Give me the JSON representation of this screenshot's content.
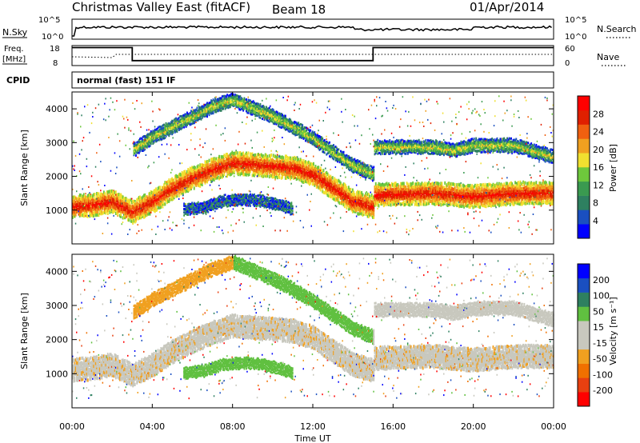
{
  "header": {
    "site": "Christmas Valley East (fitACF)",
    "beam": "Beam 18",
    "date": "01/Apr/2014"
  },
  "nsky_panel": {
    "left_label": "N.Sky",
    "left_ticks": [
      "10^5",
      "10^0"
    ],
    "right_ticks": [
      "10^5",
      "10^0"
    ],
    "right_label": "N.Search"
  },
  "freq_panel": {
    "left_label_1": "Freq.",
    "left_label_2": "[MHz]",
    "left_ticks": [
      "18",
      "8"
    ],
    "right_ticks": [
      "60",
      "0"
    ],
    "right_label": "Nave",
    "freq_steps": [
      {
        "t": 0,
        "v": 17
      },
      {
        "t": 3,
        "v": 17
      },
      {
        "t": 3,
        "v": 10.5
      },
      {
        "t": 15,
        "v": 10.5
      },
      {
        "t": 15,
        "v": 17
      },
      {
        "t": 24,
        "v": 17
      }
    ]
  },
  "cpid_panel": {
    "label": "CPID",
    "mode": "normal (fast) 151 IF"
  },
  "colors": {
    "power_scale": [
      "#0000ff",
      "#1a4fc0",
      "#2e8060",
      "#3a9a50",
      "#6ec83c",
      "#f0e030",
      "#f0a020",
      "#f06010",
      "#e02000",
      "#ff0000"
    ],
    "velocity_scale": [
      "#ff0000",
      "#e84010",
      "#f07000",
      "#f0a020",
      "#c8c8be",
      "#c8c8be",
      "#60c040",
      "#2e8060",
      "#1a4fc0",
      "#0000ff"
    ]
  },
  "chart_data": [
    {
      "type": "heatmap",
      "panel": "power",
      "ylabel": "Slant Range [km]",
      "yticks": [
        "1000",
        "2000",
        "3000",
        "4000"
      ],
      "ylim": [
        0,
        4500
      ],
      "xlim": [
        0,
        24
      ],
      "colorbar_label": "Power [dB]",
      "colorbar_ticks": [
        "4",
        "8",
        "12",
        "16",
        "20",
        "24",
        "28"
      ],
      "bands": [
        {
          "name": "near",
          "points": [
            [
              0,
              1150
            ],
            [
              1,
              1200
            ],
            [
              2,
              1300
            ],
            [
              3,
              1000
            ],
            [
              4,
              1300
            ],
            [
              5,
              1700
            ],
            [
              6,
              2000
            ],
            [
              7,
              2250
            ],
            [
              8,
              2450
            ],
            [
              9,
              2400
            ],
            [
              10,
              2350
            ],
            [
              11,
              2300
            ],
            [
              12,
              2100
            ],
            [
              13,
              1700
            ],
            [
              14,
              1300
            ],
            [
              15,
              1150
            ],
            [
              15.01,
              1500
            ],
            [
              18,
              1550
            ],
            [
              20,
              1450
            ],
            [
              22,
              1550
            ],
            [
              24,
              1550
            ]
          ],
          "width": 300
        },
        {
          "name": "far",
          "points": [
            [
              3,
              2800
            ],
            [
              4,
              3200
            ],
            [
              5,
              3500
            ],
            [
              6,
              3800
            ],
            [
              7,
              4100
            ],
            [
              8,
              4300
            ],
            [
              9,
              4050
            ],
            [
              10,
              3800
            ],
            [
              11,
              3500
            ],
            [
              12,
              3150
            ],
            [
              13,
              2750
            ],
            [
              14,
              2350
            ],
            [
              15,
              2100
            ],
            [
              15.01,
              2900
            ],
            [
              18,
              2900
            ],
            [
              19,
              2800
            ],
            [
              20,
              2950
            ],
            [
              22,
              2950
            ],
            [
              24,
              2600
            ]
          ],
          "width": 180
        },
        {
          "name": "mid",
          "points": [
            [
              5.5,
              1050
            ],
            [
              6.5,
              1100
            ],
            [
              7.5,
              1300
            ],
            [
              8.5,
              1350
            ],
            [
              9.5,
              1300
            ],
            [
              10.5,
              1150
            ],
            [
              11,
              1050
            ]
          ],
          "width": 150
        }
      ]
    },
    {
      "type": "heatmap",
      "panel": "velocity",
      "ylabel": "Slant Range [km]",
      "yticks": [
        "1000",
        "2000",
        "3000",
        "4000"
      ],
      "ylim": [
        0,
        4500
      ],
      "xlim": [
        0,
        24
      ],
      "xlabel": "Time UT",
      "xticks": [
        "00:00",
        "04:00",
        "08:00",
        "12:00",
        "16:00",
        "20:00",
        "00:00"
      ],
      "colorbar_label": "Velocity [m s⁻¹]",
      "colorbar_ticks": [
        "200",
        "100",
        "50",
        "15",
        "-15",
        "-50",
        "-100",
        "-200"
      ]
    }
  ]
}
